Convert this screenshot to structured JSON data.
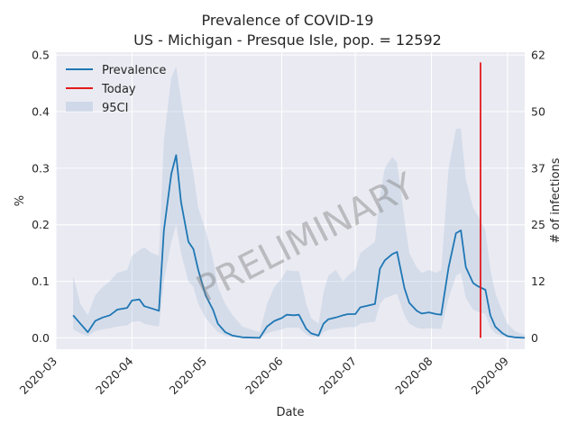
{
  "chart_data": {
    "type": "line",
    "title": "Prevalence of COVID-19",
    "subtitle": "US - Michigan - Presque Isle, pop. = 12592",
    "xlabel": "Date",
    "ylabel": "%",
    "ylabel_right": "# of infections",
    "ylim": [
      -0.02,
      0.505
    ],
    "xlim": [
      "2020-03-01",
      "2020-09-08"
    ],
    "x_ticks": [
      "2020-03",
      "2020-04",
      "2020-05",
      "2020-06",
      "2020-07",
      "2020-08",
      "2020-09"
    ],
    "x_tick_dates": [
      "2020-03-01",
      "2020-04-01",
      "2020-05-01",
      "2020-06-01",
      "2020-07-01",
      "2020-08-01",
      "2020-09-01"
    ],
    "y_ticks": [
      "0.0",
      "0.1",
      "0.2",
      "0.3",
      "0.4",
      "0.5"
    ],
    "y_tick_values": [
      0.0,
      0.1,
      0.2,
      0.3,
      0.4,
      0.5
    ],
    "y2_ticks": [
      "0",
      "12",
      "25",
      "37",
      "50",
      "62"
    ],
    "grid": true,
    "legend_position": "upper-left",
    "legend": [
      "Prevalence",
      "Today",
      "95CI"
    ],
    "watermark": "PRELIMINARY",
    "today": "2020-08-21",
    "today_ymax": 0.487,
    "series": [
      {
        "name": "Prevalence",
        "color": "#1f77b4",
        "points": [
          [
            "2020-03-08",
            0.04
          ],
          [
            "2020-03-11",
            0.025
          ],
          [
            "2020-03-14",
            0.01
          ],
          [
            "2020-03-17",
            0.03
          ],
          [
            "2020-03-20",
            0.036
          ],
          [
            "2020-03-23",
            0.04
          ],
          [
            "2020-03-26",
            0.05
          ],
          [
            "2020-03-30",
            0.053
          ],
          [
            "2020-04-01",
            0.066
          ],
          [
            "2020-04-04",
            0.068
          ],
          [
            "2020-04-06",
            0.056
          ],
          [
            "2020-04-09",
            0.052
          ],
          [
            "2020-04-12",
            0.048
          ],
          [
            "2020-04-14",
            0.19
          ],
          [
            "2020-04-17",
            0.29
          ],
          [
            "2020-04-19",
            0.323
          ],
          [
            "2020-04-21",
            0.24
          ],
          [
            "2020-04-24",
            0.17
          ],
          [
            "2020-04-26",
            0.157
          ],
          [
            "2020-04-28",
            0.12
          ],
          [
            "2020-05-01",
            0.075
          ],
          [
            "2020-05-04",
            0.05
          ],
          [
            "2020-05-06",
            0.025
          ],
          [
            "2020-05-09",
            0.01
          ],
          [
            "2020-05-12",
            0.004
          ],
          [
            "2020-05-16",
            0.001
          ],
          [
            "2020-05-23",
            0.0
          ],
          [
            "2020-05-26",
            0.02
          ],
          [
            "2020-05-29",
            0.03
          ],
          [
            "2020-06-01",
            0.035
          ],
          [
            "2020-06-03",
            0.041
          ],
          [
            "2020-06-06",
            0.04
          ],
          [
            "2020-06-08",
            0.041
          ],
          [
            "2020-06-11",
            0.016
          ],
          [
            "2020-06-13",
            0.008
          ],
          [
            "2020-06-16",
            0.004
          ],
          [
            "2020-06-18",
            0.025
          ],
          [
            "2020-06-20",
            0.033
          ],
          [
            "2020-06-23",
            0.036
          ],
          [
            "2020-06-26",
            0.04
          ],
          [
            "2020-06-28",
            0.042
          ],
          [
            "2020-07-01",
            0.042
          ],
          [
            "2020-07-03",
            0.054
          ],
          [
            "2020-07-06",
            0.057
          ],
          [
            "2020-07-09",
            0.06
          ],
          [
            "2020-07-11",
            0.122
          ],
          [
            "2020-07-13",
            0.137
          ],
          [
            "2020-07-16",
            0.148
          ],
          [
            "2020-07-18",
            0.152
          ],
          [
            "2020-07-21",
            0.088
          ],
          [
            "2020-07-23",
            0.062
          ],
          [
            "2020-07-26",
            0.048
          ],
          [
            "2020-07-28",
            0.043
          ],
          [
            "2020-07-31",
            0.045
          ],
          [
            "2020-08-03",
            0.042
          ],
          [
            "2020-08-05",
            0.041
          ],
          [
            "2020-08-08",
            0.125
          ],
          [
            "2020-08-11",
            0.185
          ],
          [
            "2020-08-13",
            0.19
          ],
          [
            "2020-08-15",
            0.125
          ],
          [
            "2020-08-18",
            0.097
          ],
          [
            "2020-08-20",
            0.091
          ],
          [
            "2020-08-23",
            0.085
          ],
          [
            "2020-08-25",
            0.04
          ],
          [
            "2020-08-27",
            0.02
          ],
          [
            "2020-08-30",
            0.008
          ],
          [
            "2020-09-01",
            0.003
          ],
          [
            "2020-09-04",
            0.001
          ],
          [
            "2020-09-08",
            0.0
          ]
        ]
      },
      {
        "name": "95CI",
        "color": "#b0c4de",
        "band": [
          [
            "2020-03-08",
            0.015,
            0.11
          ],
          [
            "2020-03-11",
            0.008,
            0.06
          ],
          [
            "2020-03-14",
            0.003,
            0.04
          ],
          [
            "2020-03-17",
            0.012,
            0.075
          ],
          [
            "2020-03-20",
            0.015,
            0.09
          ],
          [
            "2020-03-23",
            0.017,
            0.1
          ],
          [
            "2020-03-26",
            0.02,
            0.115
          ],
          [
            "2020-03-30",
            0.022,
            0.12
          ],
          [
            "2020-04-01",
            0.028,
            0.145
          ],
          [
            "2020-04-04",
            0.03,
            0.155
          ],
          [
            "2020-04-06",
            0.025,
            0.16
          ],
          [
            "2020-04-09",
            0.022,
            0.15
          ],
          [
            "2020-04-12",
            0.02,
            0.145
          ],
          [
            "2020-04-14",
            0.1,
            0.35
          ],
          [
            "2020-04-17",
            0.17,
            0.46
          ],
          [
            "2020-04-19",
            0.2,
            0.48
          ],
          [
            "2020-04-21",
            0.15,
            0.42
          ],
          [
            "2020-04-24",
            0.1,
            0.34
          ],
          [
            "2020-04-26",
            0.09,
            0.29
          ],
          [
            "2020-04-28",
            0.06,
            0.23
          ],
          [
            "2020-05-01",
            0.035,
            0.19
          ],
          [
            "2020-05-04",
            0.02,
            0.14
          ],
          [
            "2020-05-06",
            0.01,
            0.09
          ],
          [
            "2020-05-09",
            0.004,
            0.06
          ],
          [
            "2020-05-12",
            0.001,
            0.04
          ],
          [
            "2020-05-16",
            0.0,
            0.02
          ],
          [
            "2020-05-23",
            0.0,
            0.01
          ],
          [
            "2020-05-26",
            0.008,
            0.06
          ],
          [
            "2020-05-29",
            0.012,
            0.09
          ],
          [
            "2020-06-01",
            0.015,
            0.105
          ],
          [
            "2020-06-03",
            0.018,
            0.12
          ],
          [
            "2020-06-06",
            0.018,
            0.118
          ],
          [
            "2020-06-08",
            0.018,
            0.118
          ],
          [
            "2020-06-11",
            0.006,
            0.06
          ],
          [
            "2020-06-13",
            0.002,
            0.035
          ],
          [
            "2020-06-16",
            0.001,
            0.025
          ],
          [
            "2020-06-18",
            0.01,
            0.08
          ],
          [
            "2020-06-20",
            0.014,
            0.11
          ],
          [
            "2020-06-23",
            0.016,
            0.12
          ],
          [
            "2020-06-26",
            0.018,
            0.1
          ],
          [
            "2020-06-28",
            0.019,
            0.11
          ],
          [
            "2020-07-01",
            0.019,
            0.12
          ],
          [
            "2020-07-03",
            0.025,
            0.15
          ],
          [
            "2020-07-06",
            0.027,
            0.16
          ],
          [
            "2020-07-09",
            0.029,
            0.17
          ],
          [
            "2020-07-11",
            0.06,
            0.25
          ],
          [
            "2020-07-13",
            0.07,
            0.3
          ],
          [
            "2020-07-16",
            0.075,
            0.32
          ],
          [
            "2020-07-18",
            0.078,
            0.31
          ],
          [
            "2020-07-21",
            0.04,
            0.21
          ],
          [
            "2020-07-23",
            0.025,
            0.15
          ],
          [
            "2020-07-26",
            0.018,
            0.125
          ],
          [
            "2020-07-28",
            0.016,
            0.115
          ],
          [
            "2020-07-31",
            0.017,
            0.12
          ],
          [
            "2020-08-03",
            0.016,
            0.115
          ],
          [
            "2020-08-05",
            0.016,
            0.12
          ],
          [
            "2020-08-08",
            0.07,
            0.3
          ],
          [
            "2020-08-11",
            0.11,
            0.37
          ],
          [
            "2020-08-13",
            0.115,
            0.37
          ],
          [
            "2020-08-15",
            0.07,
            0.28
          ],
          [
            "2020-08-18",
            0.05,
            0.23
          ],
          [
            "2020-08-20",
            0.046,
            0.215
          ],
          [
            "2020-08-23",
            0.042,
            0.19
          ],
          [
            "2020-08-25",
            0.018,
            0.12
          ],
          [
            "2020-08-27",
            0.008,
            0.08
          ],
          [
            "2020-08-30",
            0.003,
            0.045
          ],
          [
            "2020-09-01",
            0.001,
            0.025
          ],
          [
            "2020-09-04",
            0.0,
            0.012
          ],
          [
            "2020-09-08",
            0.0,
            0.005
          ]
        ]
      },
      {
        "name": "Today",
        "color": "#e31a1c"
      }
    ]
  }
}
